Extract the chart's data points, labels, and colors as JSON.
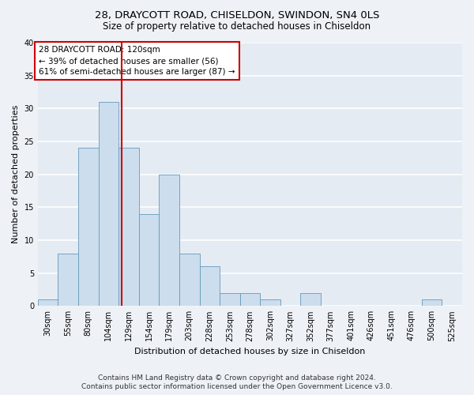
{
  "title1": "28, DRAYCOTT ROAD, CHISELDON, SWINDON, SN4 0LS",
  "title2": "Size of property relative to detached houses in Chiseldon",
  "xlabel": "Distribution of detached houses by size in Chiseldon",
  "ylabel": "Number of detached properties",
  "bins": [
    "30sqm",
    "55sqm",
    "80sqm",
    "104sqm",
    "129sqm",
    "154sqm",
    "179sqm",
    "203sqm",
    "228sqm",
    "253sqm",
    "278sqm",
    "302sqm",
    "327sqm",
    "352sqm",
    "377sqm",
    "401sqm",
    "426sqm",
    "451sqm",
    "476sqm",
    "500sqm",
    "525sqm"
  ],
  "values": [
    1,
    8,
    24,
    31,
    24,
    14,
    20,
    8,
    6,
    2,
    2,
    1,
    0,
    2,
    0,
    0,
    0,
    0,
    0,
    1,
    0
  ],
  "bar_color": "#ccdded",
  "bar_edge_color": "#6699bb",
  "property_line_label": "28 DRAYCOTT ROAD: 120sqm",
  "annotation_line1": "← 39% of detached houses are smaller (56)",
  "annotation_line2": "61% of semi-detached houses are larger (87) →",
  "annotation_box_color": "#ffffff",
  "annotation_box_edge_color": "#cc0000",
  "vline_color": "#cc0000",
  "vline_index": 3.64,
  "ylim": [
    0,
    40
  ],
  "yticks": [
    0,
    5,
    10,
    15,
    20,
    25,
    30,
    35,
    40
  ],
  "footer1": "Contains HM Land Registry data © Crown copyright and database right 2024.",
  "footer2": "Contains public sector information licensed under the Open Government Licence v3.0.",
  "bg_color": "#eef2f7",
  "plot_bg_color": "#e4ebf3",
  "grid_color": "#ffffff",
  "title1_fontsize": 9.5,
  "title2_fontsize": 8.5,
  "xlabel_fontsize": 8,
  "ylabel_fontsize": 8,
  "tick_fontsize": 7,
  "annotation_fontsize": 7.5,
  "footer_fontsize": 6.5
}
